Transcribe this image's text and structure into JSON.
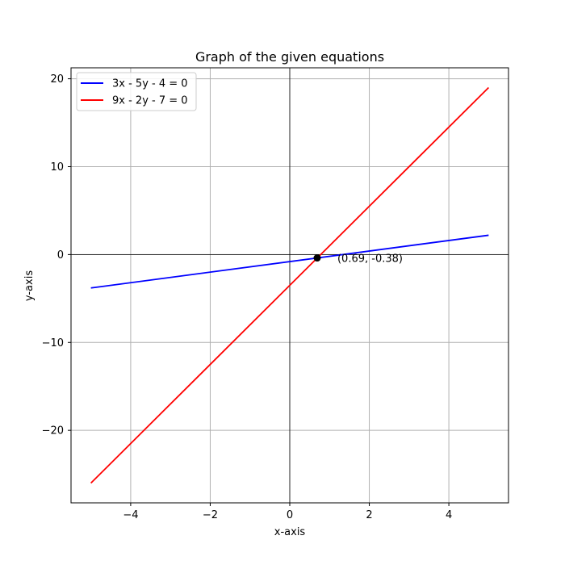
{
  "chart_data": {
    "type": "line",
    "title": "Graph of the given equations",
    "xlabel": "x-axis",
    "ylabel": "y-axis",
    "xlim": [
      -5.5,
      5.5
    ],
    "ylim": [
      -28.25,
      21.25
    ],
    "x_ticks": [
      -4,
      -2,
      0,
      2,
      4
    ],
    "y_ticks": [
      -20,
      -10,
      0,
      10,
      20
    ],
    "x_tick_labels": [
      "−4",
      "−2",
      "0",
      "2",
      "4"
    ],
    "y_tick_labels": [
      "−20",
      "−10",
      "0",
      "10",
      "20"
    ],
    "grid": true,
    "legend_position": "top-left",
    "series": [
      {
        "name": "3x - 5y - 4 = 0",
        "color": "#0000ff",
        "x": [
          -5,
          5
        ],
        "y": [
          -3.8,
          2.2
        ]
      },
      {
        "name": "9x - 2y - 7 = 0",
        "color": "#ff0000",
        "x": [
          -5,
          5
        ],
        "y": [
          -26,
          19
        ]
      }
    ],
    "intersection": {
      "x": 0.69,
      "y": -0.38,
      "label": "(0.69, -0.38)",
      "color": "#000000"
    }
  }
}
